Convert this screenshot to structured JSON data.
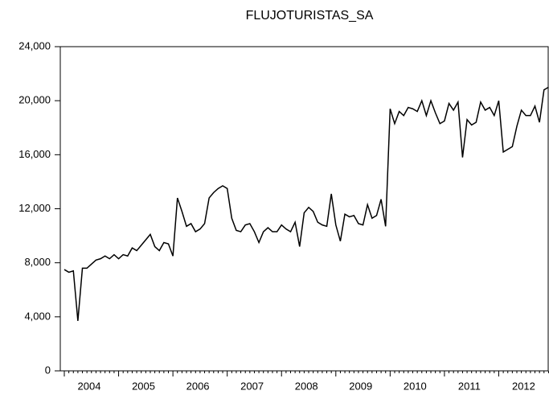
{
  "chart_data": {
    "type": "line",
    "title": "FLUJOTURISTAS_SA",
    "categories": [
      null,
      null,
      null,
      null,
      null,
      null,
      "2004",
      null,
      null,
      null,
      null,
      null,
      null,
      null,
      null,
      null,
      null,
      null,
      "2005",
      null,
      null,
      null,
      null,
      null,
      null,
      null,
      null,
      null,
      null,
      null,
      "2006",
      null,
      null,
      null,
      null,
      null,
      null,
      null,
      null,
      null,
      null,
      null,
      "2007",
      null,
      null,
      null,
      null,
      null,
      null,
      null,
      null,
      null,
      null,
      null,
      "2008",
      null,
      null,
      null,
      null,
      null,
      null,
      null,
      null,
      null,
      null,
      null,
      "2009",
      null,
      null,
      null,
      null,
      null,
      null,
      null,
      null,
      null,
      null,
      null,
      "2010",
      null,
      null,
      null,
      null,
      null,
      null,
      null,
      null,
      null,
      null,
      null,
      "2011",
      null,
      null,
      null,
      null,
      null,
      null,
      null,
      null,
      null,
      null,
      null,
      "2012",
      null,
      null,
      null,
      null,
      null
    ],
    "series": [
      {
        "color": "#000000",
        "values": [
          7500,
          7300,
          7400,
          3700,
          7600,
          7600,
          7900,
          8200,
          8300,
          8500,
          8300,
          8600,
          8300,
          8600,
          8500,
          9100,
          8900,
          9300,
          9700,
          10100,
          9200,
          8900,
          9500,
          9400,
          8500,
          12800,
          11800,
          10700,
          10900,
          10300,
          10500,
          10900,
          12800,
          13200,
          13500,
          13700,
          13500,
          11300,
          10400,
          10300,
          10800,
          10900,
          10300,
          9500,
          10300,
          10600,
          10300,
          10300,
          10800,
          10500,
          10300,
          11000,
          9200,
          11700,
          12100,
          11800,
          11000,
          10800,
          10700,
          13100,
          10800,
          9600,
          11600,
          11400,
          11500,
          10900,
          10800,
          12300,
          11300,
          11500,
          12700,
          10700,
          19400,
          18300,
          19200,
          18900,
          19500,
          19400,
          19200,
          20000,
          18900,
          20000,
          19100,
          18300,
          18500,
          19800,
          19300,
          19900,
          15800,
          18600,
          18200,
          18400,
          19900,
          19300,
          19500,
          18900,
          20000,
          16200,
          16400,
          16600,
          18100,
          19300,
          18900,
          18900,
          19600,
          18400,
          20800,
          21000
        ]
      }
    ],
    "ylim": [
      0,
      24000
    ],
    "yticks": [
      0,
      {
        "value": 4000,
        "label": "4,000"
      },
      {
        "value": 8000,
        "label": "8,000"
      },
      {
        "value": 12000,
        "label": "12,000"
      },
      {
        "value": 16000,
        "label": "16,000"
      },
      {
        "value": 20000,
        "label": "20,000"
      },
      {
        "value": 24000,
        "label": "24,000"
      }
    ]
  }
}
